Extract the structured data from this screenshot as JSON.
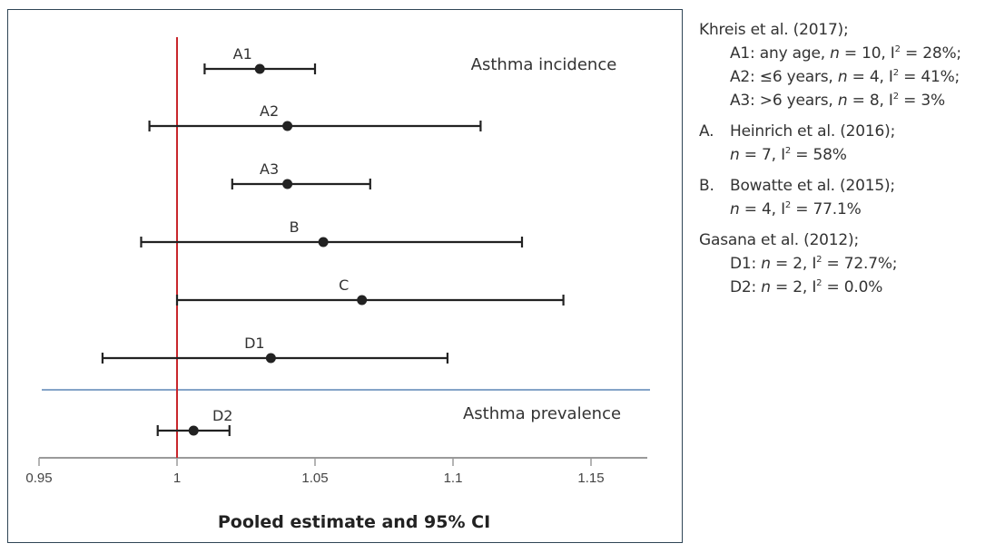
{
  "chart_data": {
    "type": "forest",
    "title": "",
    "xlabel": "Pooled estimate and 95% CI",
    "ylabel": "",
    "xlim": [
      0.95,
      1.17
    ],
    "xticks": [
      0.95,
      1,
      1.05,
      1.1,
      1.15
    ],
    "xtick_labels": [
      "0.95",
      "1",
      "1.05",
      "1.1",
      "1.15"
    ],
    "reference_line": 1,
    "grid": false,
    "sections": [
      {
        "label": "Asthma incidence",
        "rows": [
          "A1",
          "A2",
          "A3",
          "B",
          "C",
          "D1"
        ]
      },
      {
        "label": "Asthma prevalence",
        "rows": [
          "D2"
        ]
      }
    ],
    "series": [
      {
        "name": "A1",
        "estimate": 1.03,
        "lower": 1.01,
        "upper": 1.05
      },
      {
        "name": "A2",
        "estimate": 1.04,
        "lower": 0.99,
        "upper": 1.11
      },
      {
        "name": "A3",
        "estimate": 1.04,
        "lower": 1.02,
        "upper": 1.07
      },
      {
        "name": "B",
        "estimate": 1.053,
        "lower": 0.987,
        "upper": 1.125
      },
      {
        "name": "C",
        "estimate": 1.067,
        "lower": 1.0,
        "upper": 1.14
      },
      {
        "name": "D1",
        "estimate": 1.034,
        "lower": 0.973,
        "upper": 1.098
      },
      {
        "name": "D2",
        "estimate": 1.006,
        "lower": 0.993,
        "upper": 1.019
      }
    ],
    "colors": {
      "reference_line": "#c8262b",
      "separator": "#5b86b5",
      "axis": "#9a9a9a",
      "marks": "#222222",
      "frame": "#2f4556"
    }
  },
  "legend": {
    "khreis": {
      "title": "Khreis et al. (2017);",
      "a1": {
        "label": "A1: any age, ",
        "n": "10",
        "i2": "28%;"
      },
      "a2": {
        "label": "A2: ≤6 years, ",
        "n": "4",
        "i2": "41%;"
      },
      "a3": {
        "label": "A3: >6 years, ",
        "n": "8",
        "i2": "3%"
      }
    },
    "heinrich": {
      "marker": "A.",
      "title": "Heinrich et al. (2016);",
      "n": "7",
      "i2": "58%"
    },
    "bowatte": {
      "marker": "B.",
      "title": "Bowatte et al. (2015);",
      "n": "4",
      "i2": "77.1%"
    },
    "gasana": {
      "title": "Gasana et al. (2012);",
      "d1": {
        "label": "D1: ",
        "n": "2",
        "i2": "72.7%;"
      },
      "d2": {
        "label": "D2: ",
        "n": "2",
        "i2": "0.0%"
      }
    },
    "n_symbol": "n",
    "i_symbol": "I",
    "sup": "2",
    "eq": " = ",
    "comma": ", "
  }
}
